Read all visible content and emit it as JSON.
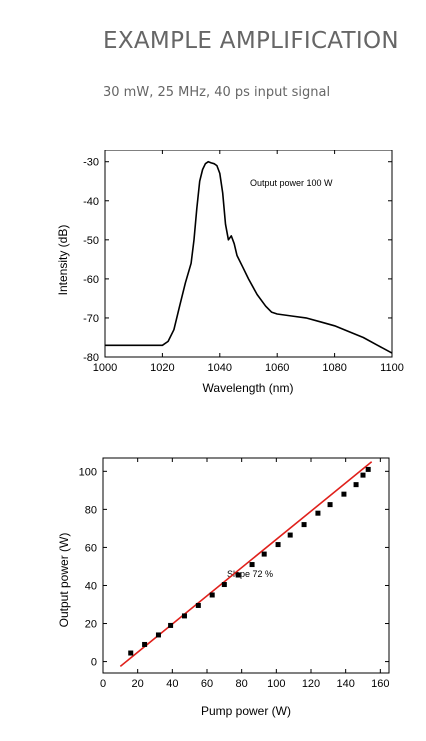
{
  "page": {
    "title": "EXAMPLE AMPLIFICATION",
    "subtitle": "30 mW, 25 MHz, 40 ps input signal"
  },
  "colors": {
    "text_gray": "#666666",
    "spectrum_line": "#000000",
    "fit_line": "#e0201b",
    "markers": "#000000"
  },
  "chart_data": [
    {
      "type": "line",
      "title": "",
      "xlabel": "Wavelength (nm)",
      "ylabel": "Intensity (dB)",
      "xlim": [
        1000,
        1100
      ],
      "ylim": [
        -80,
        -27
      ],
      "xticks": [
        1000,
        1020,
        1040,
        1060,
        1080,
        1100
      ],
      "yticks": [
        -80,
        -70,
        -60,
        -50,
        -40,
        -30
      ],
      "annotation": "Output power 100 W",
      "grid": false,
      "series": [
        {
          "x": [
            1000,
            1005,
            1010,
            1015,
            1020,
            1022,
            1024,
            1026,
            1028,
            1030,
            1031,
            1032,
            1033,
            1034,
            1035,
            1036,
            1037,
            1038,
            1039,
            1040,
            1041,
            1042,
            1043,
            1044,
            1045,
            1046,
            1048,
            1050,
            1053,
            1056,
            1058,
            1060,
            1065,
            1070,
            1075,
            1080,
            1085,
            1090,
            1095,
            1100
          ],
          "y": [
            -77,
            -77,
            -77,
            -77,
            -77,
            -76,
            -73,
            -67,
            -61,
            -56,
            -50,
            -42,
            -35,
            -32,
            -30.5,
            -30,
            -30.3,
            -30.5,
            -31,
            -33,
            -38,
            -46,
            -50,
            -49,
            -51,
            -54,
            -57,
            -60,
            -64,
            -67,
            -68.5,
            -69,
            -69.5,
            -70,
            -71,
            -72,
            -73.5,
            -75,
            -77,
            -79
          ]
        }
      ]
    },
    {
      "type": "scatter",
      "title": "",
      "xlabel": "Pump power (W)",
      "ylabel": "Output power (W)",
      "xlim": [
        0,
        165
      ],
      "ylim": [
        -6,
        107
      ],
      "xticks": [
        0,
        20,
        40,
        60,
        80,
        100,
        120,
        140,
        160
      ],
      "yticks": [
        0,
        20,
        40,
        60,
        80,
        100
      ],
      "annotation": "Slope 72 %",
      "grid": false,
      "series": [
        {
          "x": [
            16,
            24,
            32,
            39,
            47,
            55,
            63,
            70,
            78,
            86,
            93,
            101,
            108,
            116,
            124,
            131,
            139,
            146,
            150,
            153
          ],
          "y": [
            4.5,
            9,
            14,
            19,
            24,
            29.5,
            35,
            40.5,
            45.5,
            51,
            56.5,
            61.5,
            66.5,
            72,
            78,
            82.5,
            88,
            93,
            98,
            101
          ]
        }
      ],
      "fit": {
        "x": [
          10,
          155
        ],
        "y": [
          -2.5,
          105
        ]
      }
    }
  ]
}
